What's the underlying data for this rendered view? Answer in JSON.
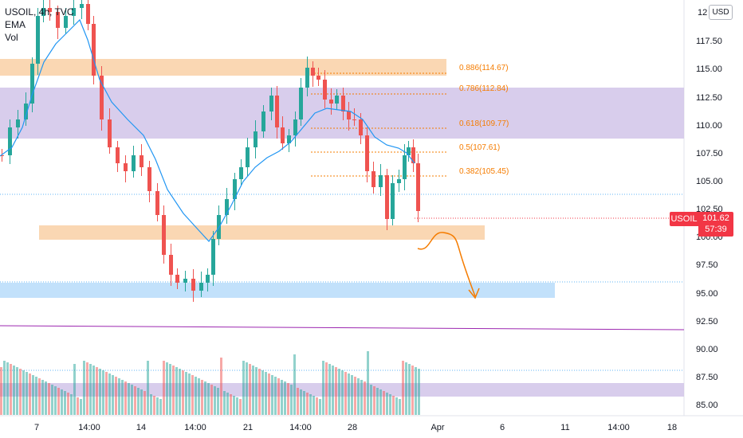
{
  "legend": {
    "symbol_line": "USOIL, 4h, TVC",
    "ema_label": "EMA",
    "vol_label": "Vol"
  },
  "currency_button": "USD",
  "last_price": {
    "symbol": "USOIL",
    "price": "101.62",
    "countdown": "57:39"
  },
  "y_axis_labels": [
    "117.50",
    "115.00",
    "112.50",
    "110.00",
    "107.50",
    "105.00",
    "102.50",
    "100.00",
    "97.50",
    "95.00",
    "92.50",
    "90.00",
    "87.50",
    "85.00"
  ],
  "y_axis_top_partial": "12",
  "x_axis_labels": [
    "7",
    "14:00",
    "14",
    "14:00",
    "21",
    "14:00",
    "28",
    "Apr",
    "6",
    "11",
    "14:00",
    "18"
  ],
  "fib_levels": [
    "0.886(114.67)",
    "0.786(112.84)",
    "0.618(109.77)",
    "0.5(107.61)",
    "0.382(105.45)"
  ],
  "colors": {
    "bull": "#26a69a",
    "bear": "#ef5350",
    "ema": "#2196f3",
    "fib": "#f57c00",
    "zone_orange": "#f9d0a6",
    "zone_purple": "#d1c4e9",
    "zone_blue": "#bbdefb",
    "magenta_line": "#9c27b0",
    "price_badge": "#f23645"
  },
  "icons": [
    "curved-arrow-icon"
  ]
}
